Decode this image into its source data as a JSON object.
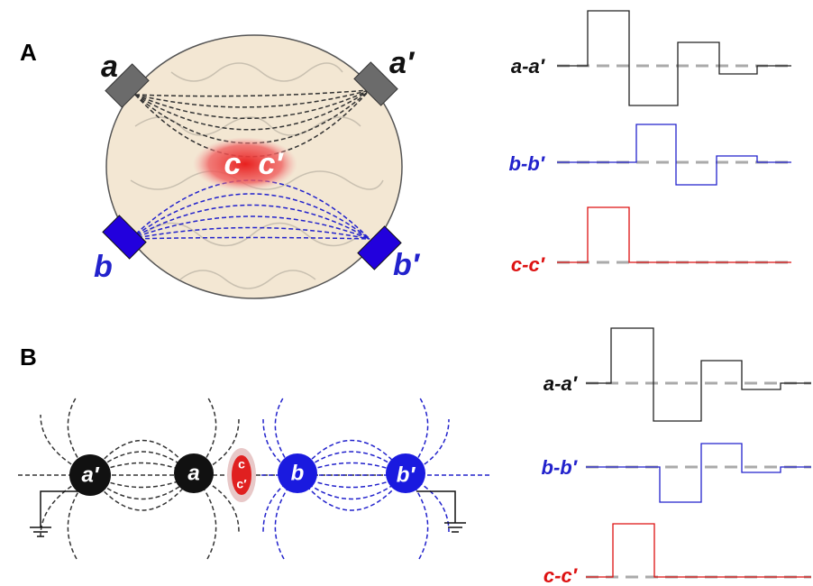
{
  "panel_a": {
    "label": "A",
    "electrodes": {
      "a": "a",
      "a_prime": "a′",
      "b": "b",
      "b_prime": "b′"
    },
    "sources": [
      "c",
      "c′"
    ],
    "traces": [
      "a-a′",
      "b-b′",
      "c-c′"
    ]
  },
  "panel_b": {
    "label": "B",
    "electrodes": {
      "a_prime": "a′",
      "a": "a",
      "b": "b",
      "b_prime": "b′"
    },
    "sources": [
      "c",
      "c′"
    ],
    "traces": [
      "a-a′",
      "b-b′",
      "c-c′"
    ]
  }
}
